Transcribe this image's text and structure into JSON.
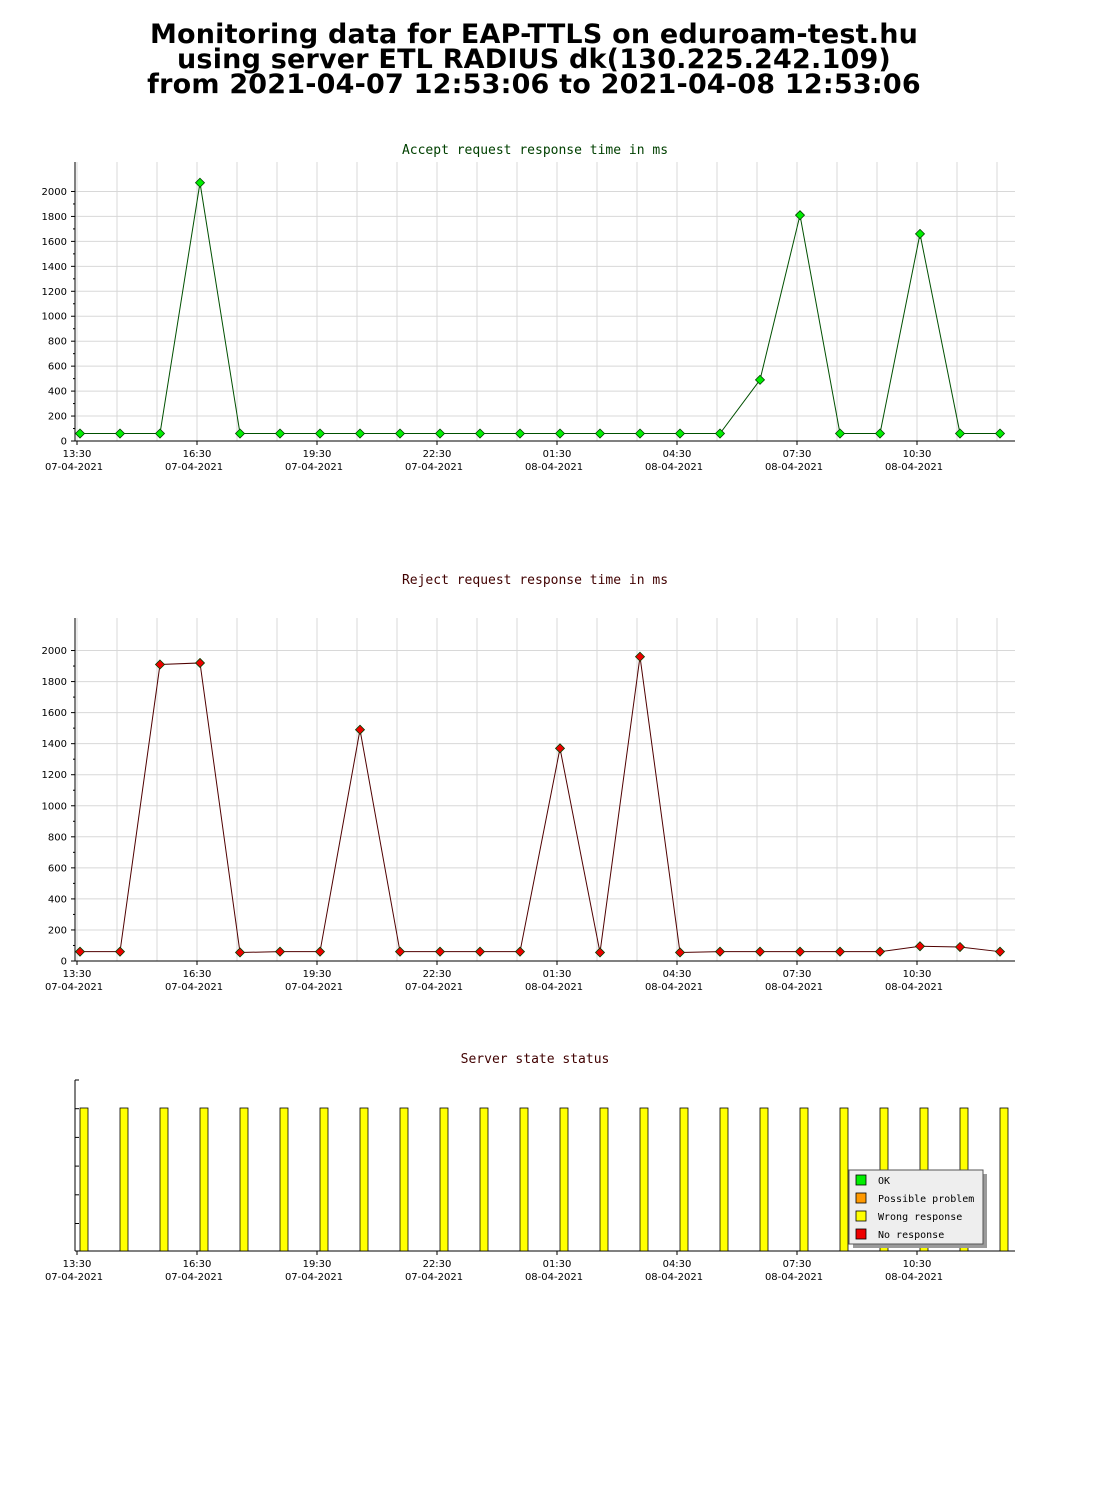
{
  "page_title": {
    "line1": "Monitoring data for EAP-TTLS on eduroam-test.hu",
    "line2": "using server ETL RADIUS dk(130.225.242.109)",
    "line3": "from 2021-04-07 12:53:06 to 2021-04-08 12:53:06"
  },
  "colors": {
    "accept_line": "#005000",
    "accept_marker": "#00ee00",
    "reject_line": "#500000",
    "reject_marker": "#ee0000",
    "accept_title": "#004000",
    "reject_title": "#400000",
    "status_title": "#400000",
    "grid": "#d8d8d8",
    "bar_wrong": "#ffff00"
  },
  "time_ticks": [
    {
      "time": "13:30",
      "date": "07-04-2021"
    },
    {
      "time": "16:30",
      "date": "07-04-2021"
    },
    {
      "time": "19:30",
      "date": "07-04-2021"
    },
    {
      "time": "22:30",
      "date": "07-04-2021"
    },
    {
      "time": "01:30",
      "date": "08-04-2021"
    },
    {
      "time": "04:30",
      "date": "08-04-2021"
    },
    {
      "time": "07:30",
      "date": "08-04-2021"
    },
    {
      "time": "10:30",
      "date": "08-04-2021"
    }
  ],
  "chart_data": [
    {
      "type": "line",
      "title": "Accept request response time in ms",
      "x": [
        "13:30",
        "14:30",
        "15:30",
        "16:30",
        "17:30",
        "18:30",
        "19:30",
        "20:30",
        "21:30",
        "22:30",
        "23:30",
        "00:30",
        "01:30",
        "02:30",
        "03:30",
        "04:30",
        "05:30",
        "06:30",
        "07:30",
        "08:30",
        "09:30",
        "10:30",
        "11:30",
        "12:30"
      ],
      "series": [
        {
          "values": [
            60,
            60,
            60,
            2070,
            60,
            60,
            60,
            60,
            60,
            60,
            60,
            60,
            60,
            60,
            60,
            60,
            60,
            490,
            1810,
            60,
            60,
            1660,
            60,
            60
          ]
        }
      ],
      "ylim": [
        0,
        2100
      ],
      "yticks": [
        0,
        200,
        400,
        600,
        800,
        1000,
        1200,
        1400,
        1600,
        1800,
        2000
      ],
      "grid": true
    },
    {
      "type": "line",
      "title": "Reject request response time in ms",
      "x": [
        "13:30",
        "14:30",
        "15:30",
        "16:30",
        "17:30",
        "18:30",
        "19:30",
        "20:30",
        "21:30",
        "22:30",
        "23:30",
        "00:30",
        "01:30",
        "02:30",
        "03:30",
        "04:30",
        "05:30",
        "06:30",
        "07:30",
        "08:30",
        "09:30",
        "10:30",
        "11:30",
        "12:30"
      ],
      "series": [
        {
          "values": [
            60,
            60,
            1910,
            1920,
            55,
            60,
            60,
            1490,
            60,
            60,
            60,
            60,
            1370,
            55,
            1960,
            55,
            60,
            60,
            60,
            60,
            60,
            95,
            90,
            60
          ]
        }
      ],
      "ylim": [
        0,
        2100
      ],
      "yticks": [
        0,
        200,
        400,
        600,
        800,
        1000,
        1200,
        1400,
        1600,
        1800,
        2000
      ],
      "grid": true
    },
    {
      "type": "bar",
      "title": "Server state status",
      "x": [
        "13:30",
        "14:30",
        "15:30",
        "16:30",
        "17:30",
        "18:30",
        "19:30",
        "20:30",
        "21:30",
        "22:30",
        "23:30",
        "00:30",
        "01:30",
        "02:30",
        "03:30",
        "04:30",
        "05:30",
        "06:30",
        "07:30",
        "08:30",
        "09:30",
        "10:30",
        "11:30",
        "12:30"
      ],
      "states": [
        "Wrong response",
        "Wrong response",
        "Wrong response",
        "Wrong response",
        "Wrong response",
        "Wrong response",
        "Wrong response",
        "Wrong response",
        "Wrong response",
        "Wrong response",
        "Wrong response",
        "Wrong response",
        "Wrong response",
        "Wrong response",
        "Wrong response",
        "Wrong response",
        "Wrong response",
        "Wrong response",
        "Wrong response",
        "Wrong response",
        "Wrong response",
        "Wrong response",
        "Wrong response",
        "Wrong response"
      ],
      "legend": [
        {
          "label": "OK",
          "color": "#00ee00"
        },
        {
          "label": "Possible problem",
          "color": "#ff9900"
        },
        {
          "label": "Wrong response",
          "color": "#ffff00"
        },
        {
          "label": "No response",
          "color": "#ee0000"
        }
      ],
      "legend_position": "right",
      "grid": false
    }
  ]
}
